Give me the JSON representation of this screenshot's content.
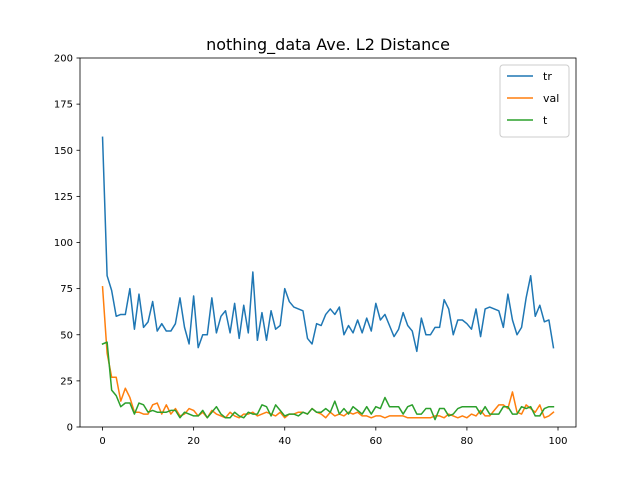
{
  "chart_data": {
    "type": "line",
    "title": "nothing_data Ave. L2 Distance",
    "xlabel": "",
    "ylabel": "",
    "xlim": [
      -4.95,
      103.95
    ],
    "ylim": [
      0,
      200
    ],
    "xticks": [
      0,
      20,
      40,
      60,
      80,
      100
    ],
    "yticks": [
      0,
      25,
      50,
      75,
      100,
      125,
      150,
      175,
      200
    ],
    "grid": false,
    "legend_position": "top-right",
    "x": [
      0,
      1,
      2,
      3,
      4,
      5,
      6,
      7,
      8,
      9,
      10,
      11,
      12,
      13,
      14,
      15,
      16,
      17,
      18,
      19,
      20,
      21,
      22,
      23,
      24,
      25,
      26,
      27,
      28,
      29,
      30,
      31,
      32,
      33,
      34,
      35,
      36,
      37,
      38,
      39,
      40,
      41,
      42,
      43,
      44,
      45,
      46,
      47,
      48,
      49,
      50,
      51,
      52,
      53,
      54,
      55,
      56,
      57,
      58,
      59,
      60,
      61,
      62,
      63,
      64,
      65,
      66,
      67,
      68,
      69,
      70,
      71,
      72,
      73,
      74,
      75,
      76,
      77,
      78,
      79,
      80,
      81,
      82,
      83,
      84,
      85,
      86,
      87,
      88,
      89,
      90,
      91,
      92,
      93,
      94,
      95,
      96,
      97,
      98,
      99
    ],
    "series": [
      {
        "name": "tr",
        "color": "#1f77b4",
        "values": [
          157,
          82,
          74,
          60,
          61,
          61,
          75,
          53,
          72,
          54,
          57,
          68,
          52,
          56,
          52,
          52,
          56,
          70,
          54,
          45,
          71,
          43,
          50,
          50,
          70,
          51,
          60,
          63,
          51,
          67,
          48,
          66,
          51,
          84,
          47,
          62,
          47,
          63,
          53,
          55,
          75,
          68,
          65,
          64,
          63,
          48,
          45,
          56,
          55,
          61,
          64,
          61,
          65,
          50,
          55,
          51,
          58,
          51,
          59,
          52,
          67,
          58,
          61,
          55,
          49,
          53,
          62,
          55,
          52,
          41,
          59,
          50,
          50,
          54,
          54,
          69,
          64,
          50,
          58,
          58,
          56,
          53,
          64,
          49,
          64,
          65,
          64,
          63,
          54,
          72,
          58,
          50,
          54,
          70,
          82,
          60,
          66,
          57,
          58,
          43
        ]
      },
      {
        "name": "val",
        "color": "#ff7f0e",
        "values": [
          76,
          40,
          27,
          27,
          14,
          21,
          16,
          8,
          8,
          7,
          7,
          12,
          13,
          7,
          12,
          7,
          10,
          6,
          7,
          10,
          9,
          6,
          8,
          5,
          9,
          7,
          6,
          5,
          8,
          6,
          5,
          7,
          7,
          8,
          6,
          7,
          8,
          7,
          6,
          8,
          5,
          7,
          7,
          8,
          8,
          7,
          10,
          8,
          7,
          5,
          8,
          6,
          7,
          6,
          8,
          7,
          8,
          6,
          6,
          5,
          6,
          6,
          5,
          6,
          6,
          6,
          6,
          5,
          5,
          5,
          5,
          5,
          5,
          6,
          6,
          5,
          7,
          6,
          5,
          6,
          5,
          7,
          6,
          9,
          6,
          6,
          9,
          12,
          12,
          10,
          19,
          8,
          7,
          12,
          10,
          8,
          12,
          5,
          6,
          8
        ]
      },
      {
        "name": "t",
        "color": "#2ca02c",
        "values": [
          45,
          46,
          20,
          17,
          11,
          13,
          13,
          7,
          13,
          12,
          8,
          9,
          8,
          8,
          8,
          9,
          9,
          5,
          8,
          7,
          6,
          6,
          9,
          5,
          8,
          11,
          7,
          5,
          5,
          8,
          6,
          5,
          8,
          7,
          7,
          12,
          11,
          6,
          12,
          9,
          6,
          7,
          7,
          6,
          8,
          7,
          10,
          8,
          8,
          10,
          8,
          14,
          7,
          10,
          7,
          11,
          9,
          7,
          11,
          7,
          11,
          10,
          16,
          11,
          11,
          11,
          7,
          11,
          12,
          7,
          7,
          10,
          10,
          4,
          10,
          10,
          6,
          7,
          10,
          11,
          11,
          11,
          11,
          7,
          11,
          7,
          7,
          7,
          11,
          11,
          7,
          7,
          11,
          10,
          11,
          6,
          6,
          10,
          11,
          11
        ]
      }
    ]
  }
}
